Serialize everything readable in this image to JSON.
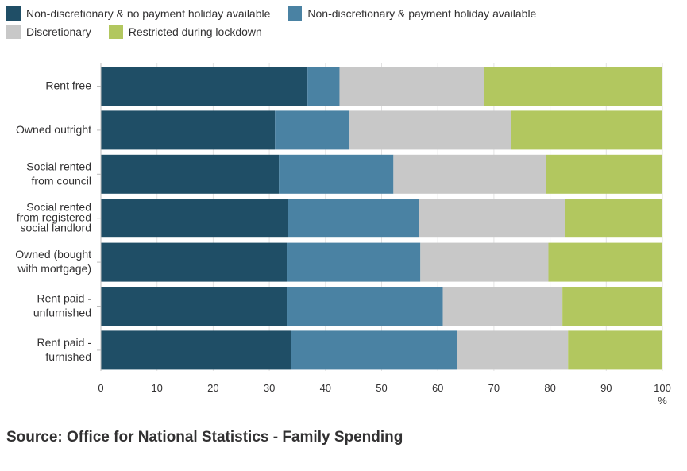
{
  "chart_data": {
    "type": "bar",
    "orientation": "horizontal",
    "stacked": true,
    "title": "",
    "xlabel": "",
    "ylabel": "",
    "x_unit": "%",
    "xlim": [
      0,
      100
    ],
    "xticks": [
      0,
      10,
      20,
      30,
      40,
      50,
      60,
      70,
      80,
      90,
      100
    ],
    "grid": true,
    "legend_position": "top-left",
    "categories": [
      "Rent free",
      "Owned outright",
      "Social rented from council",
      "Social rented from registered social landlord",
      "Owned (bought with mortgage)",
      "Rent paid - unfurnished",
      "Rent paid - furnished"
    ],
    "category_lines": [
      [
        "Rent free"
      ],
      [
        "Owned outright"
      ],
      [
        "Social rented",
        "from council"
      ],
      [
        "Social rented",
        "from registered",
        "social landlord"
      ],
      [
        "Owned (bought",
        "with mortgage)"
      ],
      [
        "Rent paid -",
        "unfurnished"
      ],
      [
        "Rent paid -",
        "furnished"
      ]
    ],
    "series": [
      {
        "name": "Non-discretionary & no payment holiday available",
        "color": "#1f4e66",
        "values": [
          36.8,
          31.0,
          31.7,
          33.3,
          33.1,
          33.1,
          33.9
        ]
      },
      {
        "name": "Non-discretionary & payment holiday available",
        "color": "#4a82a3",
        "values": [
          5.7,
          13.3,
          20.4,
          23.3,
          23.8,
          27.8,
          29.5
        ]
      },
      {
        "name": "Discretionary",
        "color": "#c8c8c8",
        "values": [
          25.8,
          28.7,
          27.2,
          26.1,
          22.8,
          21.3,
          19.8
        ]
      },
      {
        "name": "Restricted during lockdown",
        "color": "#b2c75f",
        "values": [
          31.7,
          27.0,
          20.7,
          17.3,
          20.3,
          17.8,
          16.8
        ]
      }
    ]
  },
  "source": "Source: Office for National Statistics - Family Spending"
}
